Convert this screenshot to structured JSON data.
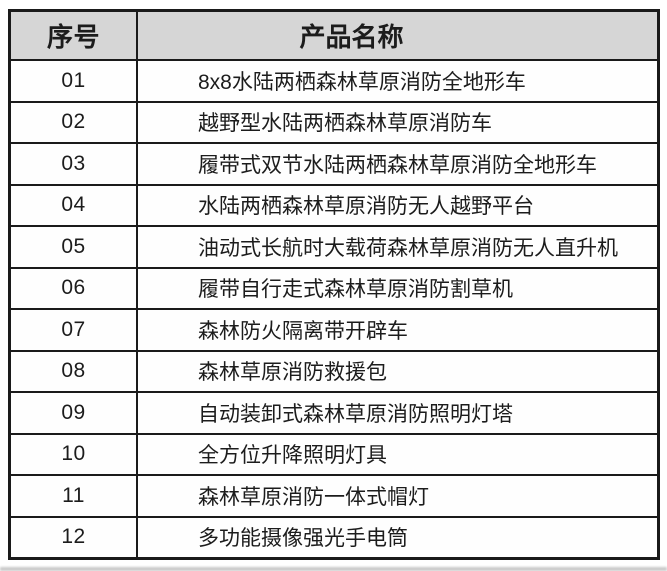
{
  "colors": {
    "header_bg": "#d6d6d6",
    "border": "#1a1a1a"
  },
  "table": {
    "headers": [
      "序号",
      "产品名称"
    ],
    "rows": [
      {
        "no": "01",
        "name": "8x8水陆两栖森林草原消防全地形车"
      },
      {
        "no": "02",
        "name": "越野型水陆两栖森林草原消防车"
      },
      {
        "no": "03",
        "name": "履带式双节水陆两栖森林草原消防全地形车"
      },
      {
        "no": "04",
        "name": "水陆两栖森林草原消防无人越野平台"
      },
      {
        "no": "05",
        "name": "油动式长航时大载荷森林草原消防无人直升机"
      },
      {
        "no": "06",
        "name": "履带自行走式森林草原消防割草机"
      },
      {
        "no": "07",
        "name": "森林防火隔离带开辟车"
      },
      {
        "no": "08",
        "name": "森林草原消防救援包"
      },
      {
        "no": "09",
        "name": "自动装卸式森林草原消防照明灯塔"
      },
      {
        "no": "10",
        "name": "全方位升降照明灯具"
      },
      {
        "no": "11",
        "name": "森林草原消防一体式帽灯"
      },
      {
        "no": "12",
        "name": "多功能摄像强光手电筒"
      }
    ]
  }
}
